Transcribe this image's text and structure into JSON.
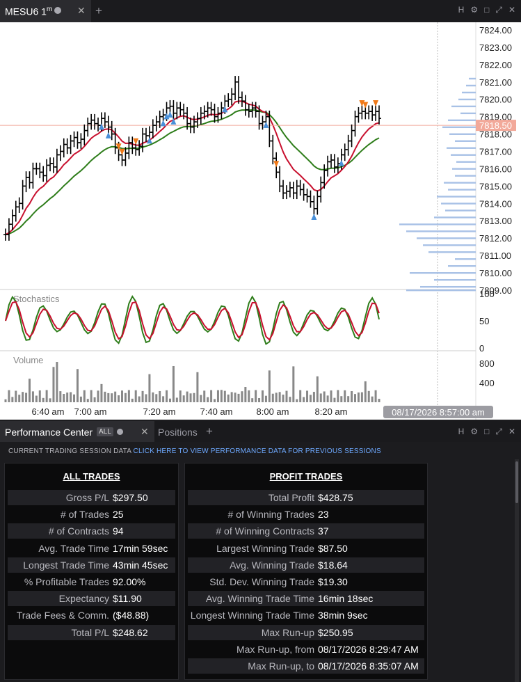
{
  "chart_tab": {
    "title": "MESU6",
    "interval": "1",
    "interval_unit": "m"
  },
  "window_icons": [
    "H",
    "⚙",
    "□",
    "⤢",
    "✕"
  ],
  "chart": {
    "price_ticks": [
      "7824.00",
      "7823.00",
      "7822.00",
      "7821.00",
      "7820.00",
      "7819.00",
      "7818.00",
      "7817.00",
      "7816.00",
      "7815.00",
      "7814.00",
      "7813.00",
      "7812.00",
      "7811.00",
      "7810.00",
      "7809.00"
    ],
    "current_price": "7818.50",
    "time_ticks": [
      "6:40 am",
      "7:00 am",
      "7:20 am",
      "7:40 am",
      "8:00 am",
      "8:20 am"
    ],
    "stochastics_label": "Stochastics",
    "stoch_ticks": [
      "100",
      "50",
      "0"
    ],
    "volume_label": "Volume",
    "volume_ticks": [
      "800",
      "400"
    ],
    "crosshair_time": "08/17/2026 8:57:00 am",
    "colors": {
      "price_bars": "#000000",
      "sma_fast": "#c8102e",
      "sma_slow": "#2e7d1a",
      "buy": "#4a90d9",
      "sell": "#f07a1a",
      "price_line": "#f2a99a",
      "label_bg": "#f2a99a",
      "volume_profile": "#a8c1e6",
      "volume_bars": "#888888"
    }
  },
  "perf": {
    "tab_title": "Performance Center",
    "badge": "ALL",
    "positions_tab": "Positions",
    "session_text": "CURRENT TRADING SESSION DATA",
    "session_link": "CLICK HERE TO VIEW PERFORMANCE DATA FOR PREVIOUS SESSIONS",
    "all_title": "ALL TRADES",
    "all_rows": [
      {
        "label": "Gross P/L",
        "value": "$297.50"
      },
      {
        "label": "# of Trades",
        "value": "25"
      },
      {
        "label": "# of Contracts",
        "value": "94"
      },
      {
        "label": "Avg. Trade Time",
        "value": "17min 59sec"
      },
      {
        "label": "Longest Trade Time",
        "value": "43min 45sec"
      },
      {
        "label": "% Profitable Trades",
        "value": "92.00%"
      },
      {
        "label": "Expectancy",
        "value": "$11.90"
      },
      {
        "label": "Trade Fees & Comm.",
        "value": "($48.88)"
      },
      {
        "label": "Total P/L",
        "value": "$248.62"
      }
    ],
    "profit_title": "PROFIT TRADES",
    "profit_rows": [
      {
        "label": "Total Profit",
        "value": "$428.75"
      },
      {
        "label": "# of Winning Trades",
        "value": "23"
      },
      {
        "label": "# of Winning Contracts",
        "value": "37"
      },
      {
        "label": "Largest Winning Trade",
        "value": "$87.50"
      },
      {
        "label": "Avg. Winning Trade",
        "value": "$18.64"
      },
      {
        "label": "Std. Dev. Winning Trade",
        "value": "$19.30"
      },
      {
        "label": "Avg. Winning Trade Time",
        "value": "16min 18sec"
      },
      {
        "label": "Longest Winning Trade Time",
        "value": "38min 9sec"
      },
      {
        "label": "Max Run-up",
        "value": "$250.95"
      },
      {
        "label": "Max Run-up, from",
        "value": "08/17/2026 8:29:47 AM"
      },
      {
        "label": "Max Run-up, to",
        "value": "08/17/2026 8:35:07 AM"
      }
    ]
  }
}
